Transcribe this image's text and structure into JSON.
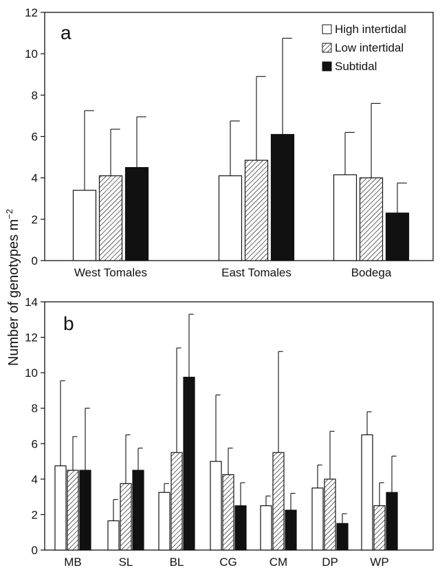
{
  "figure": {
    "ylabel_main": "Number of genotypes m",
    "ylabel_sup": "−2"
  },
  "legend": {
    "items": [
      {
        "label": "High intertidal",
        "pattern": "open"
      },
      {
        "label": "Low intertidal",
        "pattern": "hatched"
      },
      {
        "label": "Subtidal",
        "pattern": "filled"
      }
    ]
  },
  "chart_data": [
    {
      "panel_label": "a",
      "type": "bar",
      "categories": [
        "West Tomales",
        "East Tomales",
        "Bodega"
      ],
      "ylim": [
        0,
        12
      ],
      "yticks": [
        0,
        2,
        4,
        6,
        8,
        10,
        12
      ],
      "series": [
        {
          "name": "High intertidal",
          "values": [
            3.4,
            4.1,
            4.15
          ],
          "errors": [
            3.85,
            2.65,
            2.05
          ]
        },
        {
          "name": "Low intertidal",
          "values": [
            4.1,
            4.85,
            4.0
          ],
          "errors": [
            2.25,
            4.05,
            3.6
          ]
        },
        {
          "name": "Subtidal",
          "values": [
            4.5,
            6.1,
            2.3
          ],
          "errors": [
            2.45,
            4.65,
            1.45
          ]
        }
      ],
      "grid": false
    },
    {
      "panel_label": "b",
      "type": "bar",
      "categories": [
        "MB",
        "SL",
        "BL",
        "CG",
        "CM",
        "DP",
        "WP"
      ],
      "ylim": [
        0,
        14
      ],
      "yticks": [
        0,
        2,
        4,
        6,
        8,
        10,
        12,
        14
      ],
      "series": [
        {
          "name": "High intertidal",
          "values": [
            4.75,
            1.65,
            3.25,
            5.0,
            2.5,
            3.5,
            6.5
          ],
          "errors": [
            4.8,
            1.2,
            0.5,
            3.75,
            0.55,
            1.3,
            1.3
          ]
        },
        {
          "name": "Low intertidal",
          "values": [
            4.5,
            3.75,
            5.5,
            4.25,
            5.5,
            4.0,
            2.5
          ],
          "errors": [
            1.9,
            2.75,
            5.9,
            1.5,
            5.7,
            2.7,
            1.3
          ]
        },
        {
          "name": "Subtidal",
          "values": [
            4.5,
            4.5,
            9.75,
            2.5,
            2.25,
            1.5,
            3.25
          ],
          "errors": [
            3.5,
            1.25,
            3.55,
            1.3,
            0.95,
            0.55,
            2.05
          ]
        }
      ],
      "grid": false
    }
  ]
}
